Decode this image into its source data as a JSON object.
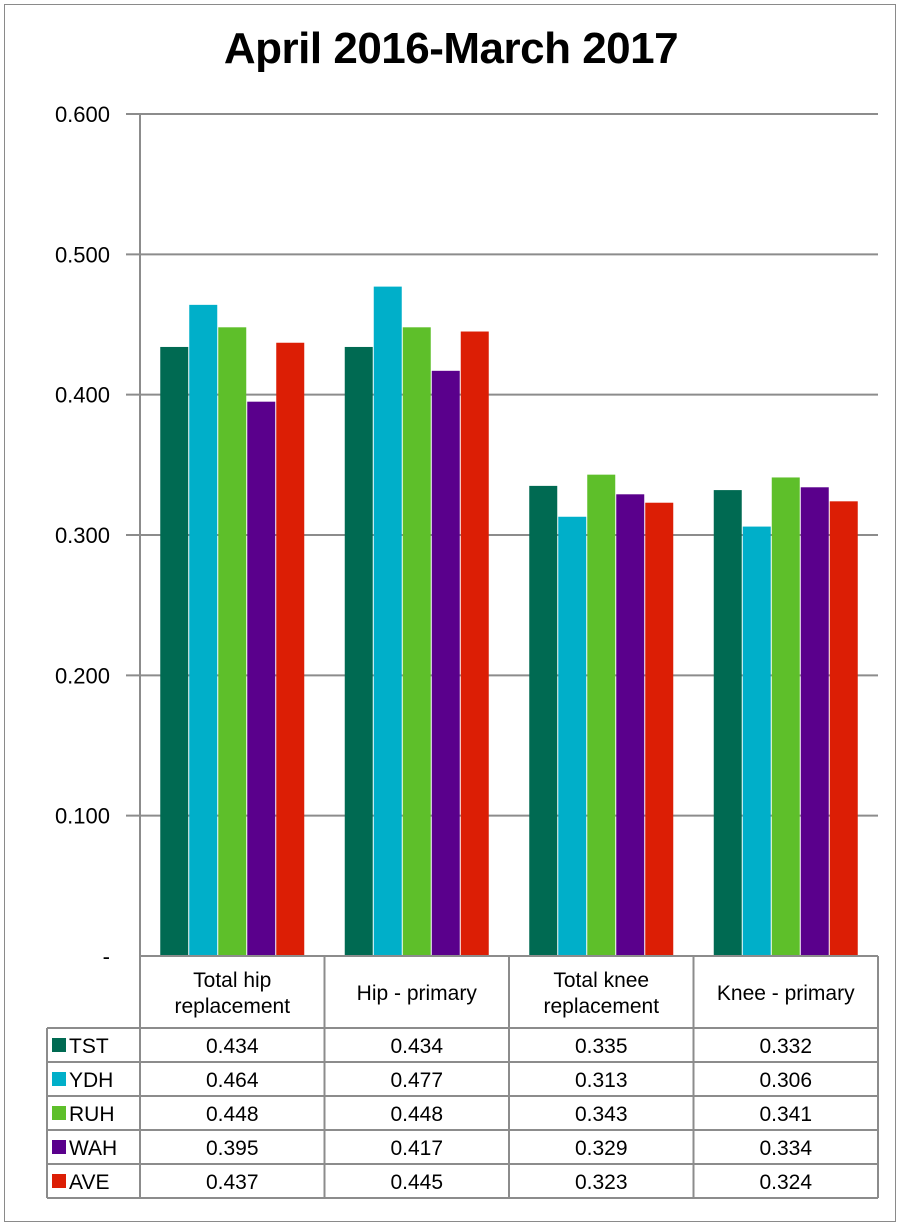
{
  "chart_data": {
    "type": "bar",
    "title": "April 2016-March 2017",
    "categories": [
      "Total hip replacement",
      "Hip - primary",
      "Total knee replacement",
      "Knee - primary"
    ],
    "category_label_lines": [
      [
        "Total hip",
        "replacement"
      ],
      [
        "Hip - primary"
      ],
      [
        "Total knee",
        "replacement"
      ],
      [
        "Knee - primary"
      ]
    ],
    "ylim": [
      0,
      0.6
    ],
    "yticks": [
      {
        "value": 0,
        "label": "-"
      },
      {
        "value": 0.1,
        "label": "0.100"
      },
      {
        "value": 0.2,
        "label": "0.200"
      },
      {
        "value": 0.3,
        "label": "0.300"
      },
      {
        "value": 0.4,
        "label": "0.400"
      },
      {
        "value": 0.5,
        "label": "0.500"
      },
      {
        "value": 0.6,
        "label": "0.600"
      }
    ],
    "grid": true,
    "legend": "data table below chart",
    "series": [
      {
        "name": "TST",
        "color": "#006a52",
        "values": [
          0.434,
          0.434,
          0.335,
          0.332
        ],
        "labels": [
          "0.434",
          "0.434",
          "0.335",
          "0.332"
        ]
      },
      {
        "name": "YDH",
        "color": "#00afc9",
        "values": [
          0.464,
          0.477,
          0.313,
          0.306
        ],
        "labels": [
          "0.464",
          "0.477",
          "0.313",
          "0.306"
        ]
      },
      {
        "name": "RUH",
        "color": "#5ebf2a",
        "values": [
          0.448,
          0.448,
          0.343,
          0.341
        ],
        "labels": [
          "0.448",
          "0.448",
          "0.343",
          "0.341"
        ]
      },
      {
        "name": "WAH",
        "color": "#5a008c",
        "values": [
          0.395,
          0.417,
          0.329,
          0.334
        ],
        "labels": [
          "0.395",
          "0.417",
          "0.329",
          "0.334"
        ]
      },
      {
        "name": "AVE",
        "color": "#dc1e05",
        "values": [
          0.437,
          0.445,
          0.323,
          0.324
        ],
        "labels": [
          "0.437",
          "0.445",
          "0.323",
          "0.324"
        ]
      }
    ]
  }
}
